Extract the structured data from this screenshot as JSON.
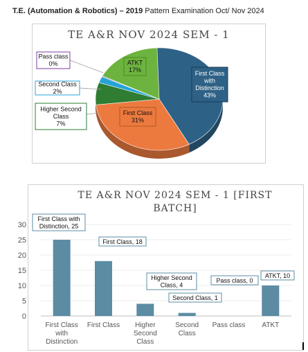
{
  "heading": {
    "bold_part": "T.E. (Automation & Robotics) – 2019",
    "rest": " Pattern Examination Oct/ Nov 2024"
  },
  "charts": {
    "pie_title": "TE A&R NOV 2024 SEM - 1",
    "bar_title_line1": "TE A&R NOV 2024 SEM - 1 [FIRST",
    "bar_title_line2": "BATCH]"
  },
  "chart_data": [
    {
      "type": "pie",
      "title": "TE A&R NOV 2024 SEM - 1",
      "slices": [
        {
          "name": "First Class with Distinction",
          "percent": 43,
          "color": "#2e6186"
        },
        {
          "name": "First Class",
          "percent": 31,
          "color": "#ec7a3f"
        },
        {
          "name": "Higher Second Class",
          "percent": 7,
          "color": "#2e7d32"
        },
        {
          "name": "Second Class",
          "percent": 2,
          "color": "#27a3d8"
        },
        {
          "name": "Pass class",
          "percent": 0,
          "color": "#7b3fa1"
        },
        {
          "name": "ATKT",
          "percent": 17,
          "color": "#6db33f"
        }
      ],
      "data_labels": [
        {
          "lines": [
            "First Class",
            "with",
            "Distinction",
            "43%"
          ]
        },
        {
          "lines": [
            "First Class",
            "31%"
          ]
        },
        {
          "lines": [
            "Higher Second",
            "Class",
            "7%"
          ]
        },
        {
          "lines": [
            "Second Class",
            "2%"
          ]
        },
        {
          "lines": [
            "Pass class",
            "0%"
          ]
        },
        {
          "lines": [
            "ATKT",
            "17%"
          ]
        }
      ]
    },
    {
      "type": "bar",
      "title": "TE A&R NOV 2024 SEM - 1 [FIRST BATCH]",
      "categories": [
        [
          "First Class",
          "with",
          "Distinction"
        ],
        [
          "First Class"
        ],
        [
          "Higher",
          "Second",
          "Class"
        ],
        [
          "Second",
          "Class"
        ],
        [
          "Pass class"
        ],
        [
          "ATKT"
        ]
      ],
      "values": [
        25,
        18,
        4,
        1,
        0,
        10
      ],
      "ylim": [
        0,
        30
      ],
      "yticks": [
        0,
        5,
        10,
        15,
        20,
        25,
        30
      ],
      "grid": true,
      "bar_color": "#5b8ca4",
      "data_labels": [
        [
          "First Class with",
          "Distinction, 25"
        ],
        [
          "First Class, 18"
        ],
        [
          "Higher Second",
          "Class, 4"
        ],
        [
          "Second Class, 1"
        ],
        [
          "Pass class, 0"
        ],
        [
          "ATKT,  10"
        ]
      ]
    }
  ]
}
